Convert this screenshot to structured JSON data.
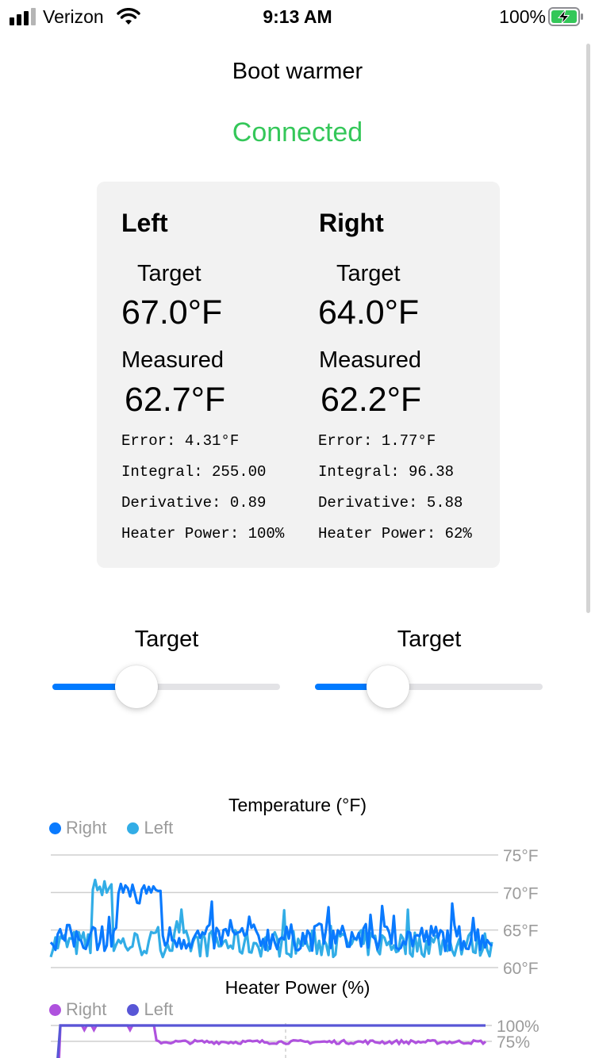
{
  "status_bar": {
    "carrier": "Verizon",
    "time": "9:13 AM",
    "battery": "100%",
    "icons": [
      "signal-icon",
      "wifi-icon",
      "battery-charging-icon"
    ]
  },
  "title": "Boot warmer",
  "connection": {
    "text": "Connected",
    "color": "#34c759"
  },
  "sides": [
    {
      "name": "Left",
      "target_label": "Target",
      "target": "67.0°F",
      "measured_label": "Measured",
      "measured": "62.7°F",
      "stats": [
        "Error: 4.31°F",
        "Integral: 255.00",
        "Derivative: 0.89",
        "Heater Power: 100%"
      ]
    },
    {
      "name": "Right",
      "target_label": "Target",
      "target": "64.0°F",
      "measured_label": "Measured",
      "measured": "62.2°F",
      "stats": [
        "Error: 1.77°F",
        "Integral: 96.38",
        "Derivative: 5.88",
        "Heater Power: 62%"
      ]
    }
  ],
  "sliders": [
    {
      "label": "Target",
      "fraction": 0.37,
      "color": "#007aff"
    },
    {
      "label": "Target",
      "fraction": 0.32,
      "color": "#007aff"
    }
  ],
  "chart_data": [
    {
      "type": "line",
      "title": "Temperature (°F)",
      "series": [
        {
          "name": "Right",
          "color": "#0a7afe",
          "base": 64.0,
          "spike": [
            0.15,
            0.25,
            70.0
          ]
        },
        {
          "name": "Left",
          "color": "#32ade6",
          "base": 63.2,
          "spike": [
            0.09,
            0.14,
            71.0
          ]
        }
      ],
      "ylim": [
        60,
        75
      ],
      "y_ticks": [
        {
          "value": 75,
          "label": "75°F"
        },
        {
          "value": 70,
          "label": "70°F"
        },
        {
          "value": 65,
          "label": "65°F"
        },
        {
          "value": 60,
          "label": "60°F"
        }
      ],
      "grid": true,
      "legend": "top-left"
    },
    {
      "type": "line",
      "title": "Heater Power (%)",
      "series": [
        {
          "name": "Right",
          "color": "#af52de"
        },
        {
          "name": "Left",
          "color": "#5856d6"
        }
      ],
      "ylim": [
        0,
        100
      ],
      "y_ticks": [
        {
          "value": 100,
          "label": "100%"
        },
        {
          "value": 75,
          "label": "75%"
        }
      ],
      "grid": true,
      "legend": "top-left"
    }
  ]
}
